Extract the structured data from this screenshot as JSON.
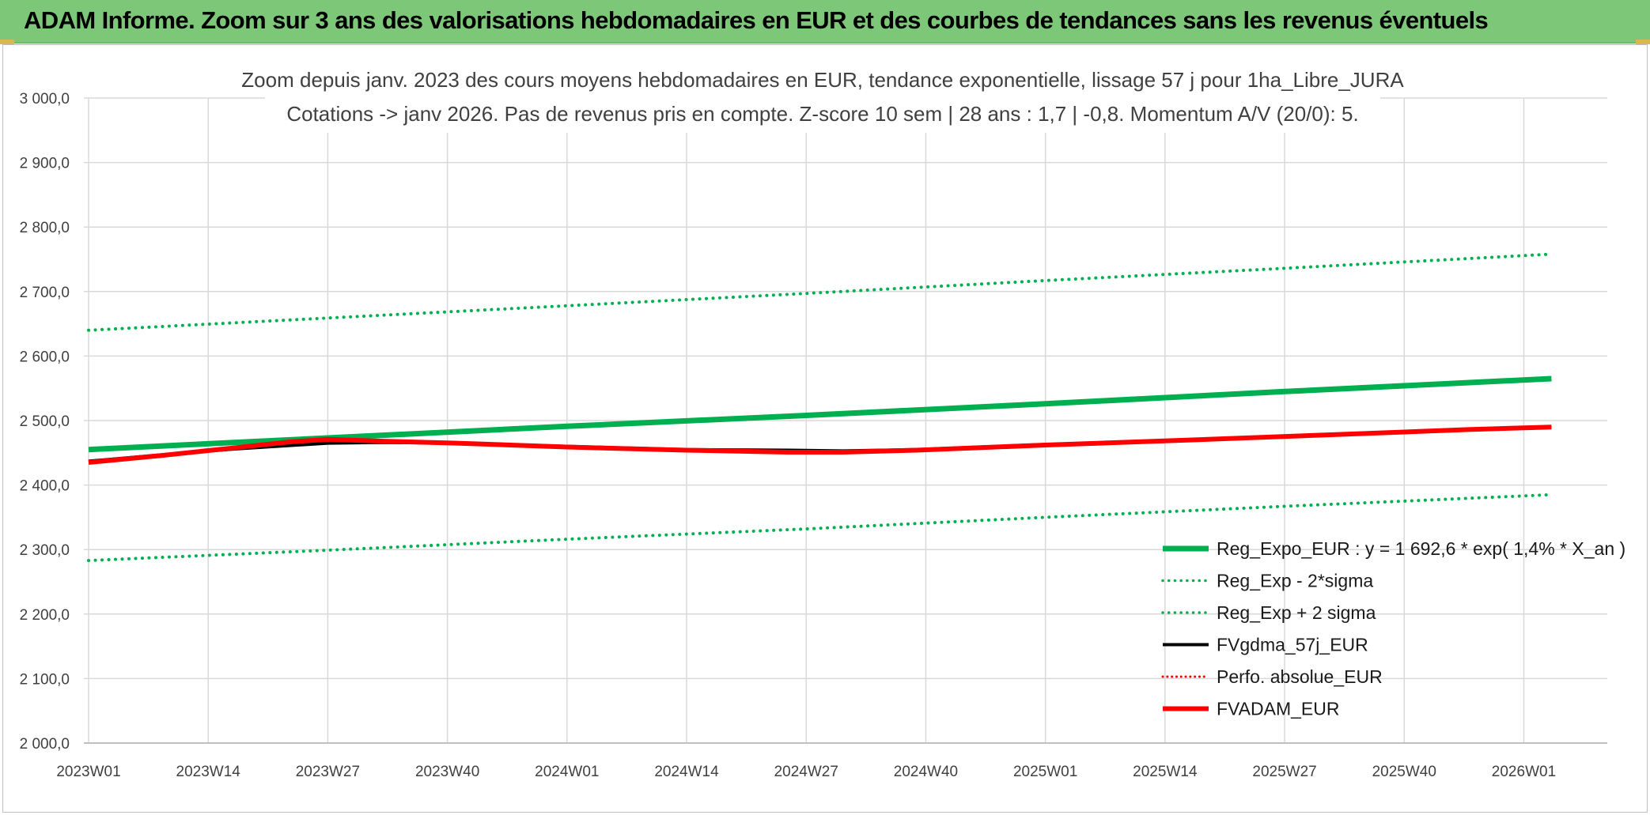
{
  "banner": {
    "title": "ADAM Informe. Zoom sur 3 ans des valorisations hebdomadaires en EUR et des courbes de tendances sans les revenus éventuels"
  },
  "chart_data": {
    "type": "line",
    "title_lines": [
      "Zoom depuis janv. 2023 des cours moyens hebdomadaires en EUR, tendance exponentielle, lissage 57 j pour 1ha_Libre_JURA",
      "Cotations -> janv 2026. Pas de revenus pris en compte. Z-score 10 sem | 28 ans : 1,7 | -0,8. Momentum A/V (20/0): 5."
    ],
    "x_ticks": [
      "2023W01",
      "2023W14",
      "2023W27",
      "2023W40",
      "2024W01",
      "2024W14",
      "2024W27",
      "2024W40",
      "2025W01",
      "2025W14",
      "2025W27",
      "2025W40",
      "2026W01"
    ],
    "y_ticks": [
      "2 000,0",
      "2 100,0",
      "2 200,0",
      "2 300,0",
      "2 400,0",
      "2 500,0",
      "2 600,0",
      "2 700,0",
      "2 800,0",
      "2 900,0",
      "3 000,0"
    ],
    "ylim": [
      2000,
      3000
    ],
    "x_range_weeks": [
      0,
      160
    ],
    "grid": true,
    "legend_position": "bottom-right",
    "series": [
      {
        "name": "Reg_Expo_EUR : y = 1 692,6 * exp( 1,4% *  X_an )",
        "color": "#00b050",
        "style": "solid",
        "width": 7,
        "points": [
          [
            0,
            2455
          ],
          [
            26,
            2473
          ],
          [
            52,
            2491
          ],
          [
            78,
            2508
          ],
          [
            104,
            2526
          ],
          [
            130,
            2545
          ],
          [
            159,
            2565
          ]
        ]
      },
      {
        "name": "Reg_Exp - 2*sigma",
        "color": "#00b050",
        "style": "dotted",
        "width": 4,
        "points": [
          [
            0,
            2283
          ],
          [
            26,
            2299
          ],
          [
            52,
            2316
          ],
          [
            78,
            2332
          ],
          [
            104,
            2350
          ],
          [
            130,
            2367
          ],
          [
            159,
            2385
          ]
        ]
      },
      {
        "name": "Reg_Exp + 2 sigma",
        "color": "#00b050",
        "style": "dotted",
        "width": 4,
        "points": [
          [
            0,
            2640
          ],
          [
            26,
            2659
          ],
          [
            52,
            2678
          ],
          [
            78,
            2697
          ],
          [
            104,
            2717
          ],
          [
            130,
            2736
          ],
          [
            159,
            2758
          ]
        ]
      },
      {
        "name": "FVgdma_57j_EUR",
        "color": "#000000",
        "style": "solid",
        "width": 4,
        "points": [
          [
            0,
            2437
          ],
          [
            8,
            2447
          ],
          [
            16,
            2456
          ],
          [
            26,
            2465
          ],
          [
            32,
            2466
          ],
          [
            40,
            2465
          ],
          [
            52,
            2460
          ],
          [
            65,
            2455
          ],
          [
            76,
            2454
          ],
          [
            82,
            2453
          ],
          [
            90,
            2455
          ],
          [
            104,
            2463
          ],
          [
            120,
            2470
          ],
          [
            135,
            2478
          ],
          [
            150,
            2486
          ],
          [
            159,
            2490
          ]
        ]
      },
      {
        "name": "Perfo. absolue_EUR",
        "color": "#ff0000",
        "style": "dotted",
        "width": 3,
        "points": []
      },
      {
        "name": "FVADAM_EUR",
        "color": "#ff0000",
        "style": "solid",
        "width": 6,
        "points": [
          [
            0,
            2435
          ],
          [
            8,
            2446
          ],
          [
            16,
            2458
          ],
          [
            22,
            2467
          ],
          [
            26,
            2471
          ],
          [
            32,
            2468
          ],
          [
            40,
            2465
          ],
          [
            52,
            2459
          ],
          [
            65,
            2454
          ],
          [
            76,
            2451
          ],
          [
            82,
            2451
          ],
          [
            90,
            2454
          ],
          [
            104,
            2462
          ],
          [
            120,
            2470
          ],
          [
            135,
            2478
          ],
          [
            150,
            2486
          ],
          [
            159,
            2490
          ]
        ]
      }
    ]
  }
}
